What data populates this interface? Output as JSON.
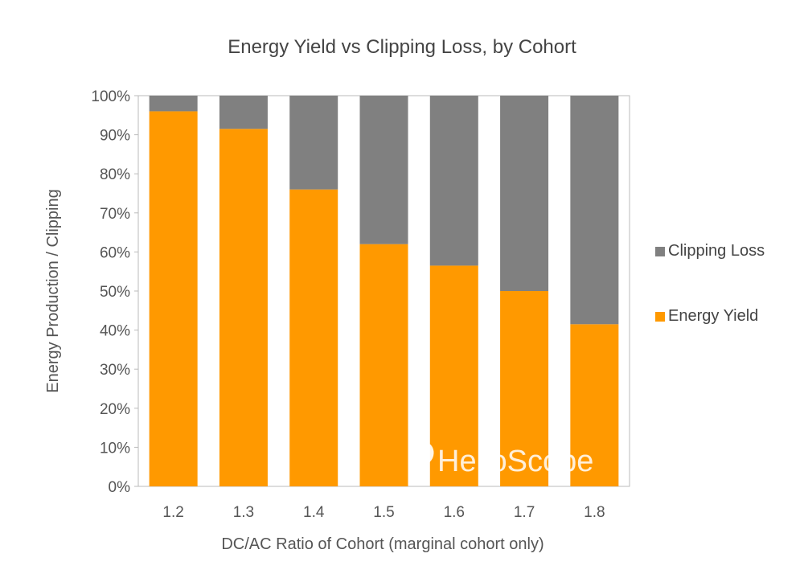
{
  "chart_data": {
    "type": "bar",
    "stacked": true,
    "title": "Energy Yield vs Clipping Loss, by Cohort",
    "xlabel": "DC/AC Ratio of Cohort (marginal cohort only)",
    "ylabel": "Energy Production / Clipping",
    "categories": [
      "1.2",
      "1.3",
      "1.4",
      "1.5",
      "1.6",
      "1.7",
      "1.8"
    ],
    "ylim": [
      0,
      100
    ],
    "y_ticks": [
      "0%",
      "10%",
      "20%",
      "30%",
      "40%",
      "50%",
      "60%",
      "70%",
      "80%",
      "90%",
      "100%"
    ],
    "grid": false,
    "legend_position": "right",
    "series": [
      {
        "name": "Energy Yield",
        "color": "#ff9900",
        "values": [
          96,
          91.5,
          76,
          62,
          56.5,
          50,
          41.5
        ]
      },
      {
        "name": "Clipping Loss",
        "color": "#808080",
        "values": [
          4,
          8.5,
          24,
          38,
          43.5,
          50,
          58.5
        ]
      }
    ],
    "legend_order": [
      "Clipping Loss",
      "Energy Yield"
    ]
  },
  "watermark": {
    "text": "HelioScope",
    "icon": "power-icon"
  }
}
